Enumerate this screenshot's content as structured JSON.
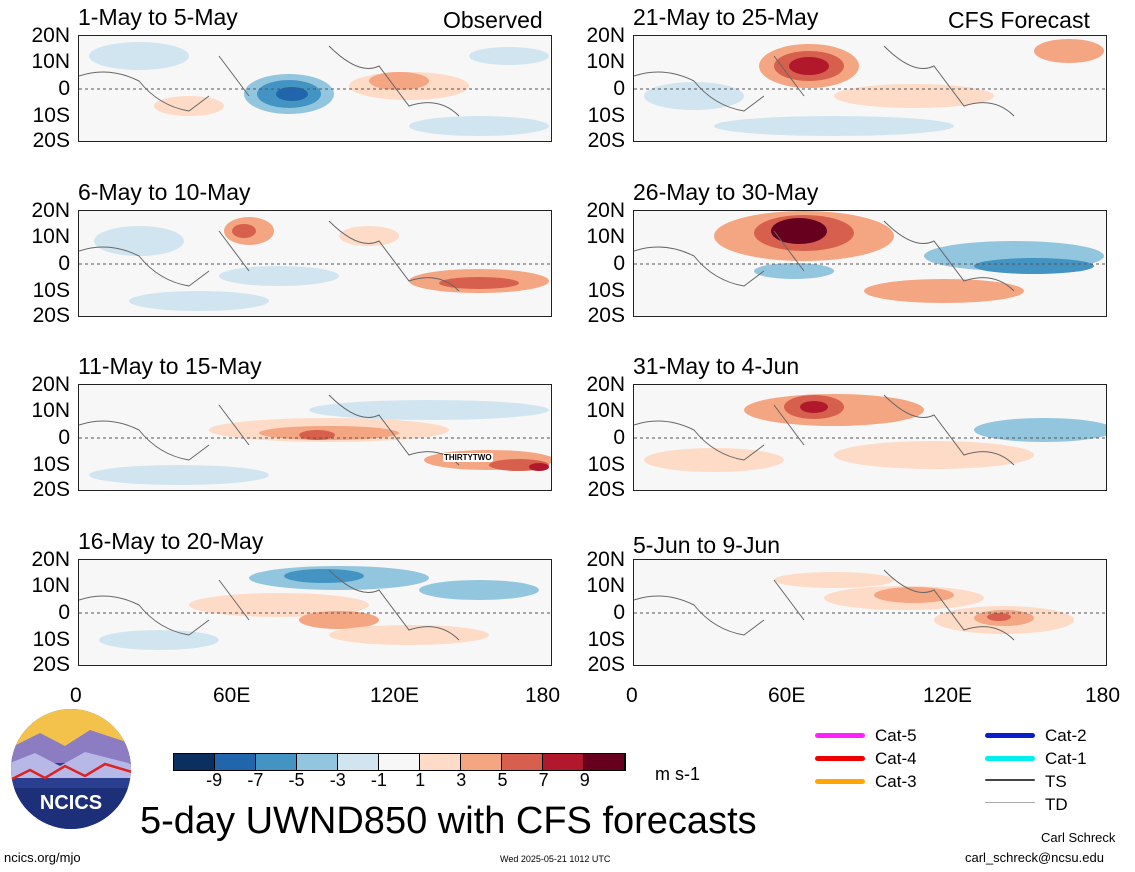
{
  "lat_labels": [
    "20N",
    "10N",
    "0",
    "10S",
    "20S"
  ],
  "lon_labels": [
    "0",
    "60E",
    "120E",
    "180"
  ],
  "observed_label": "Observed",
  "forecast_label": "CFS Forecast",
  "panels_left": [
    {
      "title": "1-May to 5-May"
    },
    {
      "title": "6-May to 10-May"
    },
    {
      "title": "11-May to 15-May",
      "storm": "THIRTYTWO"
    },
    {
      "title": "16-May to 20-May"
    }
  ],
  "panels_right": [
    {
      "title": "21-May to 25-May"
    },
    {
      "title": "26-May to 30-May"
    },
    {
      "title": "31-May to 4-Jun"
    },
    {
      "title": "5-Jun to 9-Jun"
    }
  ],
  "colorbar": {
    "labels": [
      "-9",
      "-7",
      "-5",
      "-3",
      "-1",
      "1",
      "3",
      "5",
      "7",
      "9"
    ],
    "colors": [
      "#0b2f5e",
      "#2166ac",
      "#4393c3",
      "#92c5de",
      "#d1e5f0",
      "#f7f7f7",
      "#fddbc7",
      "#f4a582",
      "#d6604d",
      "#b2182b",
      "#67001f"
    ],
    "units": "m s-1"
  },
  "legend": [
    {
      "label": "Cat-5",
      "color": "#ff22ff"
    },
    {
      "label": "Cat-4",
      "color": "#ee0000"
    },
    {
      "label": "Cat-3",
      "color": "#ffa500"
    },
    {
      "label": "Cat-2",
      "color": "#0a1ecc"
    },
    {
      "label": "Cat-1",
      "color": "#00eeee"
    },
    {
      "label": "TS",
      "color": "#444444"
    },
    {
      "label": "TD",
      "color": "#aaaaaa"
    }
  ],
  "logo_text": "NCICS",
  "main_title": "5-day UWND850 with CFS forecasts",
  "url": "ncics.org/mjo",
  "timestamp": "Wed 2025-05-21 1012 UTC",
  "author": "Carl Schreck",
  "email": "carl_schreck@ncsu.edu"
}
